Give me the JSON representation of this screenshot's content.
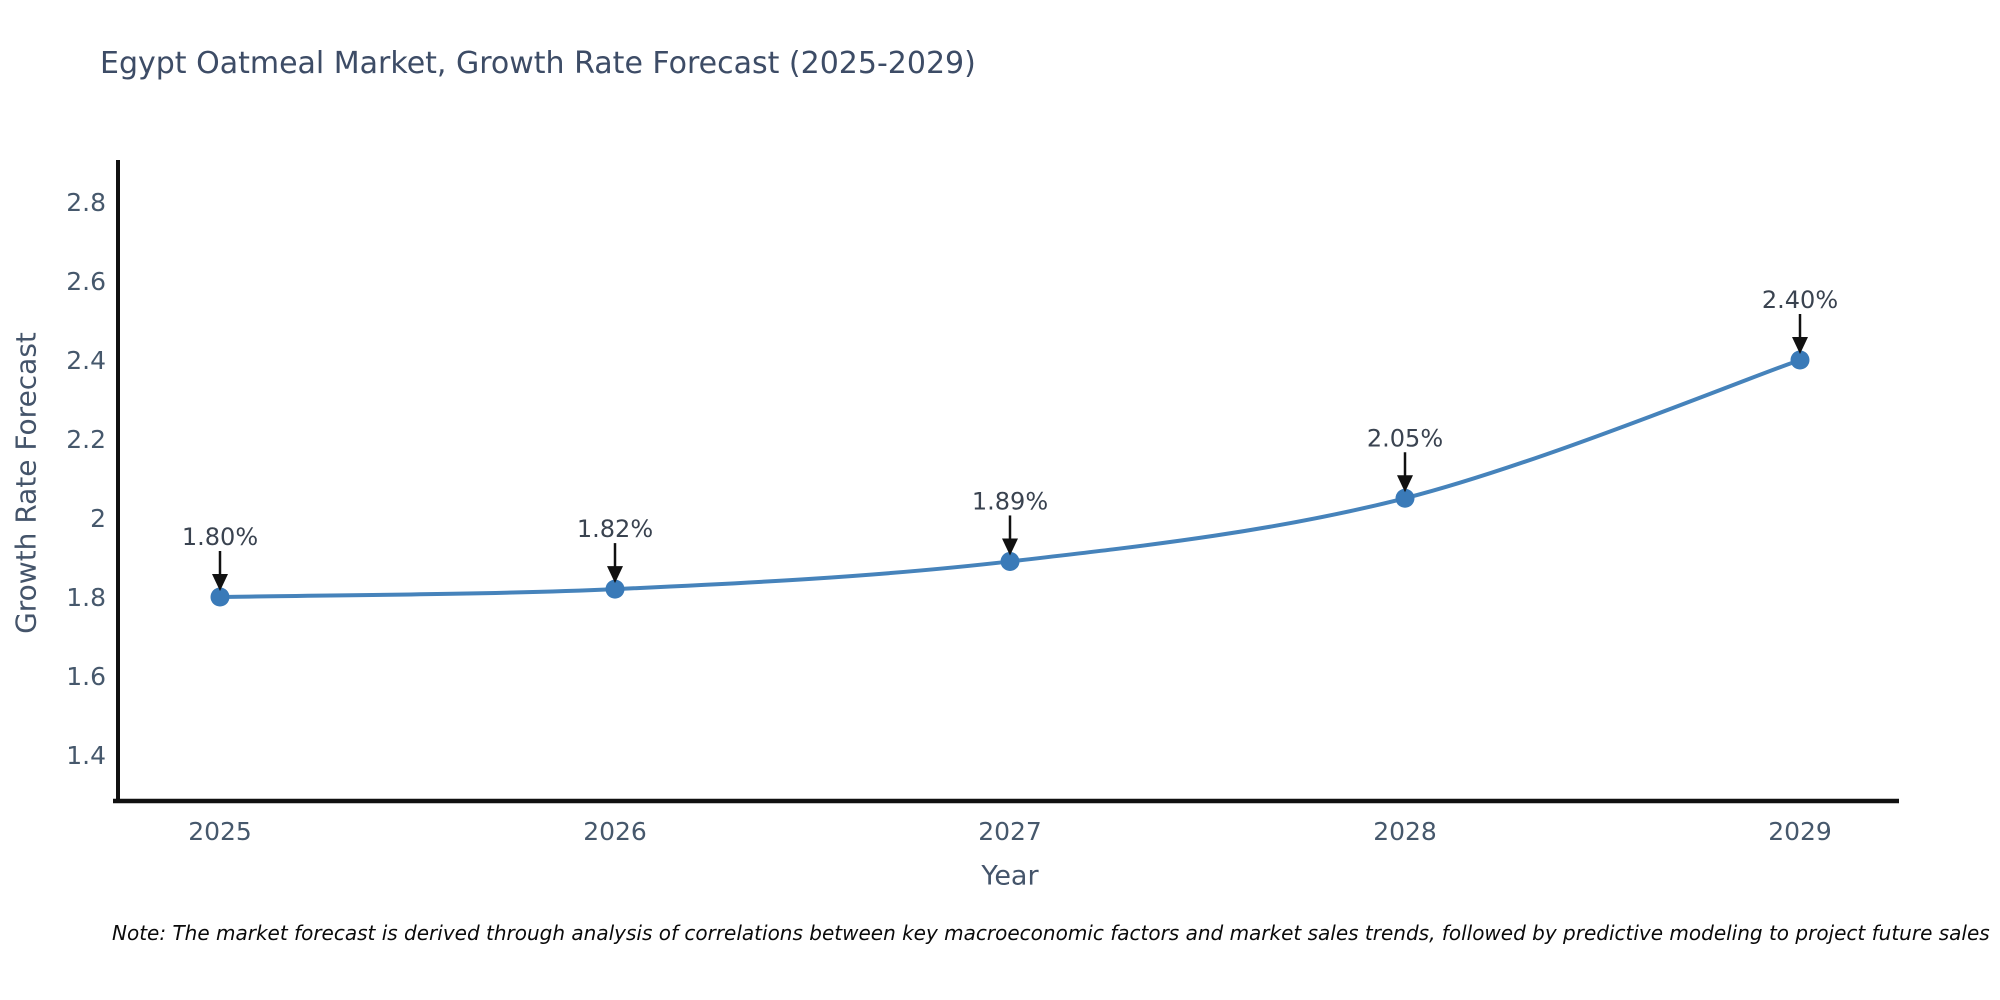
{
  "note": "Note: The market forecast is derived through analysis of correlations between key macroeconomic factors and market sales trends, followed by predictive modeling to project future sales",
  "chart_data": {
    "type": "line",
    "title": "Egypt Oatmeal Market, Growth Rate Forecast (2025-2029)",
    "xlabel": "Year",
    "ylabel": "Growth Rate Forecast",
    "x": [
      2025,
      2026,
      2027,
      2028,
      2029
    ],
    "series": [
      {
        "name": "Growth Rate Forecast",
        "values": [
          1.8,
          1.82,
          1.89,
          2.05,
          2.4
        ]
      }
    ],
    "point_labels": [
      "1.80%",
      "1.82%",
      "1.89%",
      "2.05%",
      "2.40%"
    ],
    "x_tick_labels": [
      "2025",
      "2026",
      "2027",
      "2028",
      "2029"
    ],
    "y_tick_labels": [
      "1.4",
      "1.6",
      "1.8",
      "2",
      "2.2",
      "2.4",
      "2.6",
      "2.8"
    ],
    "y_tick_values": [
      1.4,
      1.6,
      1.8,
      2.0,
      2.2,
      2.4,
      2.6,
      2.8
    ],
    "ylim": [
      1.28,
      2.91
    ],
    "xlim": [
      2024.73,
      2029.25
    ],
    "grid": false,
    "legend": "none",
    "annotation_style": "value label with down arrow above each point",
    "colors": {
      "line": "#4683bb",
      "marker": "#3a7ab8",
      "arrow": "#111111",
      "annotation_text": "#3a4350",
      "axis_line": "#111111",
      "tick_label": "#46586c",
      "title": "#3d4c66"
    }
  }
}
